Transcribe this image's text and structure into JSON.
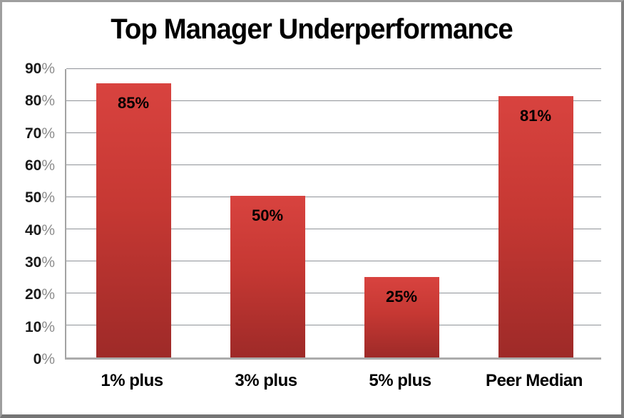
{
  "chart_data": {
    "type": "bar",
    "title": "Top Manager Underperformance",
    "categories": [
      "1% plus",
      "3% plus",
      "5% plus",
      "Peer Median"
    ],
    "values": [
      85,
      50,
      25,
      81
    ],
    "data_labels": [
      "85%",
      "50%",
      "25%",
      "81%"
    ],
    "xlabel": "",
    "ylabel": "",
    "ylim": [
      0,
      90
    ],
    "y_tick_step": 10,
    "y_ticks": [
      {
        "num": "90",
        "unit": "%"
      },
      {
        "num": "80",
        "unit": "%"
      },
      {
        "num": "70",
        "unit": "%"
      },
      {
        "num": "60",
        "unit": "%"
      },
      {
        "num": "50",
        "unit": "%"
      },
      {
        "num": "40",
        "unit": "%"
      },
      {
        "num": "30",
        "unit": "%"
      },
      {
        "num": "20",
        "unit": "%"
      },
      {
        "num": "10",
        "unit": "%"
      },
      {
        "num": "0",
        "unit": "%"
      }
    ],
    "grid": "horizontal",
    "legend_position": "none",
    "colors": {
      "bar_top": "#d8433f",
      "bar_bottom": "#9e2a28",
      "gridline": "#8f9398",
      "axis_line": "#a3a3a3",
      "label_text": "#000000",
      "tick_unit_text": "#8c8c8c",
      "frame_border": "#9e9e9e"
    }
  }
}
